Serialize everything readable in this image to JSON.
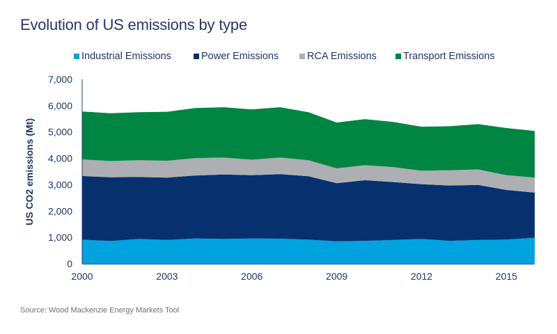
{
  "title": "Evolution of US emissions by type",
  "source": "Source: Wood Mackenzie Energy Markets Tool",
  "chart_data": {
    "type": "area",
    "stacked": true,
    "title": "Evolution of US emissions by type",
    "xlabel": "",
    "ylabel": "US CO2 emissions (Mt)",
    "ylim": [
      0,
      7000
    ],
    "xlim": [
      2000,
      2016
    ],
    "grid": false,
    "legend_position": "top",
    "y_ticks": [
      "0",
      "1,000",
      "2,000",
      "3,000",
      "4,000",
      "5,000",
      "6,000",
      "7,000"
    ],
    "y_tick_values": [
      0,
      1000,
      2000,
      3000,
      4000,
      5000,
      6000,
      7000
    ],
    "x_ticks": [
      "2000",
      "2003",
      "2006",
      "2009",
      "2012",
      "2015"
    ],
    "x_tick_values": [
      2000,
      2003,
      2006,
      2009,
      2012,
      2015
    ],
    "x": [
      2000,
      2001,
      2002,
      2003,
      2004,
      2005,
      2006,
      2007,
      2008,
      2009,
      2010,
      2011,
      2012,
      2013,
      2014,
      2015,
      2016
    ],
    "series": [
      {
        "name": "Industrial Emissions",
        "color": "#00a3e0",
        "values": [
          915,
          860,
          940,
          900,
          960,
          940,
          960,
          950,
          915,
          850,
          870,
          900,
          940,
          870,
          900,
          920,
          985
        ]
      },
      {
        "name": "Power Emissions",
        "color": "#06316e",
        "values": [
          2415,
          2420,
          2350,
          2370,
          2390,
          2450,
          2400,
          2450,
          2405,
          2210,
          2300,
          2200,
          2080,
          2100,
          2090,
          1880,
          1715
        ]
      },
      {
        "name": "RCA Emissions",
        "color": "#adafb2",
        "values": [
          630,
          620,
          640,
          640,
          660,
          640,
          590,
          630,
          610,
          560,
          570,
          570,
          510,
          580,
          590,
          560,
          570
        ]
      },
      {
        "name": "Transport Emissions",
        "color": "#008542",
        "values": [
          1820,
          1810,
          1820,
          1860,
          1900,
          1910,
          1910,
          1910,
          1820,
          1740,
          1750,
          1710,
          1670,
          1670,
          1720,
          1790,
          1770
        ]
      }
    ]
  }
}
